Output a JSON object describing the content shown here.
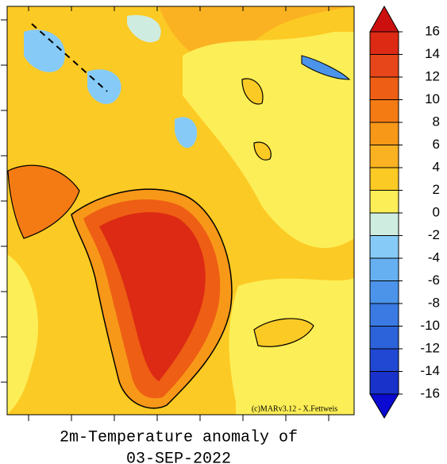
{
  "title_lines": [
    "2m-Temperature anomaly of",
    "03-SEP-2022"
  ],
  "credit": "(c)MARv3.12 - X.Fettweis",
  "colorbar": {
    "ticks": [
      16,
      14,
      12,
      10,
      8,
      6,
      4,
      2,
      0,
      -2,
      -4,
      -6,
      -8,
      -10,
      -12,
      -14,
      -16
    ],
    "colors": [
      "#cc1010",
      "#dc2a14",
      "#e6461a",
      "#ee5e14",
      "#f47a14",
      "#f89818",
      "#fab222",
      "#fcca24",
      "#fcee56",
      "#cfece0",
      "#86cbf8",
      "#66b0f2",
      "#4c94ea",
      "#3a7ae2",
      "#2c62da",
      "#2048d2",
      "#1832ca",
      "#0a0ad0"
    ]
  }
}
